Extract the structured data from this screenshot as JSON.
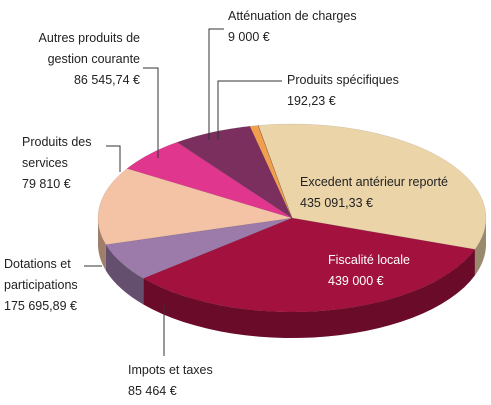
{
  "chart_data": {
    "type": "pie",
    "categories": [
      "Excedent antérieur reporté",
      "Fiscalité locale",
      "Impots et taxes",
      "Dotations et participations",
      "Produits des services",
      "Autres produits de gestion courante",
      "Atténuation de charges",
      "Produits spécifiques"
    ],
    "values": [
      435091.33,
      439000,
      85464,
      175695.89,
      79810,
      86545.74,
      9000,
      192.23
    ],
    "value_labels": [
      "435 091,33 €",
      "439 000 €",
      "85 464 €",
      "175 695,89 €",
      "79 810 €",
      "86 545,74 €",
      "9 000 €",
      "192,23 €"
    ],
    "colors": [
      "#ecd4a9",
      "#a3123f",
      "#9c7aa9",
      "#f4c3a6",
      "#e0368e",
      "#7b2f5f",
      "#f0a04c",
      "#b8203a"
    ]
  }
}
